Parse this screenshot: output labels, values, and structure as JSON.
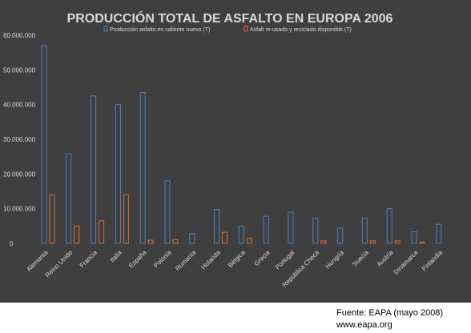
{
  "chart_data": {
    "type": "bar",
    "title": "PRODUCCIÓN TOTAL DE ASFALTO EN EUROPA  2006",
    "xlabel": "",
    "ylabel": "",
    "ylim": [
      0,
      60000000
    ],
    "yticks": [
      0,
      10000000,
      20000000,
      30000000,
      40000000,
      50000000,
      60000000
    ],
    "ytick_labels": [
      "0",
      "10.000.000",
      "20.000.000",
      "30.000.000",
      "40.000.000",
      "50.000.000",
      "60.000.000"
    ],
    "grid": false,
    "legend_position": "top",
    "categories": [
      "Alemania",
      "Reino Unido",
      "Francia",
      "Italia",
      "España",
      "Polonia",
      "Rumania",
      "Holanda",
      "Bélgica",
      "Grecia",
      "Portugal",
      "República Checa",
      "Hungría",
      "Suecia",
      "Austria",
      "Dinamarca",
      "Finlandia"
    ],
    "series": [
      {
        "name": "Producción asfalto en caliente nuevo (T)",
        "color": "#4f81bd",
        "values": [
          57000000,
          25800000,
          42500000,
          40000000,
          43500000,
          18000000,
          2800000,
          9800000,
          5000000,
          7800000,
          9000000,
          7300000,
          4400000,
          7300000,
          10000000,
          3400000,
          5500000
        ]
      },
      {
        "name": "Asfalt re-usado y reciclado disponible (T)",
        "color": "#e46c2a",
        "values": [
          14000000,
          5000000,
          6500000,
          14000000,
          900000,
          1100000,
          0,
          3200000,
          1400000,
          0,
          0,
          700000,
          0,
          700000,
          700000,
          400000,
          0
        ]
      }
    ]
  },
  "colors": {
    "background": "#3f3f3f",
    "text": "#d9d9d9",
    "title": "#d9d9d9"
  },
  "source": {
    "line1": "Fuente: EAPA (mayo 2008)",
    "line2": "www.eapa.org"
  }
}
